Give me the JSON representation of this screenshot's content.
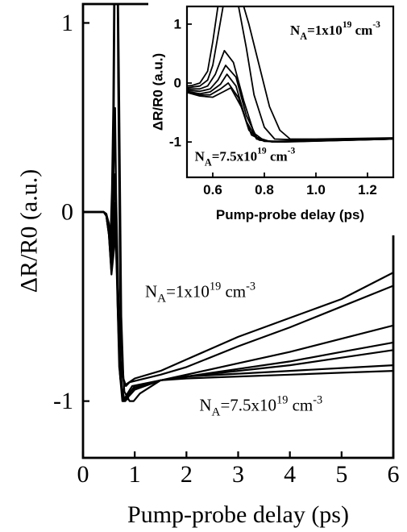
{
  "chart_data": [
    {
      "id": "main",
      "type": "line",
      "xlabel": "Pump-probe delay (ps)",
      "ylabel": "ΔR/R0 (a.u.)",
      "xlim": [
        0,
        6
      ],
      "ylim": [
        -1.3,
        1.1
      ],
      "xticks": [
        0,
        1,
        2,
        3,
        4,
        5,
        6
      ],
      "xtick_labels": [
        "0",
        "1",
        "2",
        "3",
        "4",
        "5",
        "6"
      ],
      "yticks": [
        -1,
        0,
        1
      ],
      "ytick_labels": [
        "-1",
        "0",
        "1"
      ],
      "grid": false,
      "annotations": [
        {
          "N": "N",
          "sub": "A",
          "eq": "=1x10",
          "sup": "19",
          "unit": " cm",
          "unit_sup": "-3",
          "x": 1.2,
          "y": -0.45
        },
        {
          "N": "N",
          "sub": "A",
          "eq": "=7.5x10",
          "sup": "19",
          "unit": " cm",
          "unit_sup": "-3",
          "x": 2.25,
          "y": -1.05
        }
      ],
      "series": [
        {
          "values": [
            [
              0,
              0
            ],
            [
              0.4,
              0
            ],
            [
              0.45,
              -0.01
            ],
            [
              0.5,
              -0.06
            ],
            [
              0.53,
              -0.15
            ],
            [
              0.56,
              0.12
            ],
            [
              0.585,
              0.55
            ],
            [
              0.6,
              1.1
            ],
            [
              0.67,
              1.1
            ],
            [
              0.68,
              0.7
            ],
            [
              0.72,
              -0.45
            ],
            [
              0.76,
              -0.85
            ],
            [
              0.8,
              -0.92
            ],
            [
              0.84,
              -0.91
            ],
            [
              1.0,
              -0.88
            ],
            [
              1.5,
              -0.84
            ],
            [
              2,
              -0.78
            ],
            [
              3,
              -0.66
            ],
            [
              4,
              -0.56
            ],
            [
              5,
              -0.46
            ],
            [
              6,
              -0.32
            ]
          ]
        },
        {
          "values": [
            [
              0,
              0
            ],
            [
              0.4,
              0
            ],
            [
              0.45,
              -0.01
            ],
            [
              0.5,
              -0.07
            ],
            [
              0.54,
              -0.2
            ],
            [
              0.57,
              0.05
            ],
            [
              0.595,
              0.5
            ],
            [
              0.61,
              1.1
            ],
            [
              0.68,
              1.1
            ],
            [
              0.7,
              0.6
            ],
            [
              0.74,
              -0.55
            ],
            [
              0.78,
              -0.88
            ],
            [
              0.83,
              -0.92
            ],
            [
              0.9,
              -0.9
            ],
            [
              1.5,
              -0.86
            ],
            [
              2,
              -0.82
            ],
            [
              3,
              -0.71
            ],
            [
              4,
              -0.61
            ],
            [
              5,
              -0.5
            ],
            [
              6,
              -0.39
            ]
          ]
        },
        {
          "values": [
            [
              0,
              0
            ],
            [
              0.4,
              0
            ],
            [
              0.45,
              -0.01
            ],
            [
              0.5,
              -0.08
            ],
            [
              0.55,
              -0.25
            ],
            [
              0.58,
              -0.02
            ],
            [
              0.6,
              0.3
            ],
            [
              0.62,
              0.55
            ],
            [
              0.64,
              0.1
            ],
            [
              0.68,
              -0.4
            ],
            [
              0.72,
              -0.78
            ],
            [
              0.76,
              -0.97
            ],
            [
              0.8,
              -0.99
            ],
            [
              0.86,
              -0.96
            ],
            [
              0.95,
              -0.92
            ],
            [
              1.5,
              -0.89
            ],
            [
              2,
              -0.86
            ],
            [
              3,
              -0.8
            ],
            [
              4,
              -0.74
            ],
            [
              5,
              -0.67
            ],
            [
              6,
              -0.6
            ]
          ]
        },
        {
          "values": [
            [
              0,
              0
            ],
            [
              0.4,
              0
            ],
            [
              0.45,
              -0.02
            ],
            [
              0.5,
              -0.1
            ],
            [
              0.55,
              -0.28
            ],
            [
              0.58,
              -0.05
            ],
            [
              0.61,
              0.2
            ],
            [
              0.63,
              0.05
            ],
            [
              0.67,
              -0.5
            ],
            [
              0.71,
              -0.85
            ],
            [
              0.76,
              -1.0
            ],
            [
              0.82,
              -1.0
            ],
            [
              0.88,
              -0.96
            ],
            [
              1.0,
              -0.93
            ],
            [
              1.5,
              -0.89
            ],
            [
              2,
              -0.87
            ],
            [
              3,
              -0.83
            ],
            [
              4,
              -0.79
            ],
            [
              5,
              -0.74
            ],
            [
              6,
              -0.69
            ]
          ]
        },
        {
          "values": [
            [
              0,
              0
            ],
            [
              0.4,
              0
            ],
            [
              0.45,
              -0.02
            ],
            [
              0.5,
              -0.11
            ],
            [
              0.55,
              -0.3
            ],
            [
              0.585,
              -0.1
            ],
            [
              0.615,
              0.05
            ],
            [
              0.65,
              -0.3
            ],
            [
              0.7,
              -0.82
            ],
            [
              0.78,
              -1.0
            ],
            [
              0.86,
              -0.99
            ],
            [
              0.92,
              -0.95
            ],
            [
              1.0,
              -0.92
            ],
            [
              1.5,
              -0.89
            ],
            [
              2,
              -0.87
            ],
            [
              3,
              -0.84
            ],
            [
              4,
              -0.81
            ],
            [
              5,
              -0.77
            ],
            [
              6,
              -0.73
            ]
          ]
        },
        {
          "values": [
            [
              0,
              0
            ],
            [
              0.4,
              0
            ],
            [
              0.45,
              -0.02
            ],
            [
              0.5,
              -0.12
            ],
            [
              0.55,
              -0.32
            ],
            [
              0.59,
              -0.15
            ],
            [
              0.62,
              -0.05
            ],
            [
              0.66,
              -0.35
            ],
            [
              0.72,
              -0.88
            ],
            [
              0.8,
              -0.99
            ],
            [
              0.9,
              -0.97
            ],
            [
              1.0,
              -0.94
            ],
            [
              1.5,
              -0.89
            ],
            [
              2,
              -0.87
            ],
            [
              3,
              -0.855
            ],
            [
              4,
              -0.84
            ],
            [
              5,
              -0.825
            ],
            [
              6,
              -0.81
            ]
          ]
        },
        {
          "values": [
            [
              0,
              0
            ],
            [
              0.4,
              0
            ],
            [
              0.45,
              -0.02
            ],
            [
              0.5,
              -0.12
            ],
            [
              0.55,
              -0.33
            ],
            [
              0.6,
              -0.2
            ],
            [
              0.63,
              -0.12
            ],
            [
              0.7,
              -0.55
            ],
            [
              0.8,
              -0.95
            ],
            [
              0.9,
              -1.0
            ],
            [
              0.98,
              -1.0
            ],
            [
              1.1,
              -0.96
            ],
            [
              1.5,
              -0.89
            ],
            [
              2,
              -0.88
            ],
            [
              3,
              -0.87
            ],
            [
              4,
              -0.86
            ],
            [
              5,
              -0.85
            ],
            [
              6,
              -0.84
            ]
          ]
        }
      ]
    },
    {
      "id": "inset",
      "type": "line",
      "xlabel": "Pump-probe delay (ps)",
      "ylabel": "ΔR/R0 (a.u.)",
      "xlim": [
        0.5,
        1.3
      ],
      "ylim": [
        -1.6,
        1.3
      ],
      "xticks": [
        0.6,
        0.8,
        1.0,
        1.2
      ],
      "xtick_labels": [
        "0.6",
        "0.8",
        "1.0",
        "1.2"
      ],
      "yticks": [
        -1,
        0,
        1
      ],
      "ytick_labels": [
        "-1",
        "0",
        "1"
      ],
      "grid": false,
      "annotations": [
        {
          "N": "N",
          "sub": "A",
          "eq": "=1x10",
          "sup": "19",
          "unit": " cm",
          "unit_sup": "-3",
          "x": 0.9,
          "y": 0.82
        },
        {
          "N": "N",
          "sub": "A",
          "eq": "=7.5x10",
          "sup": "19",
          "unit": " cm",
          "unit_sup": "-3",
          "x": 0.53,
          "y": -1.32
        }
      ],
      "series": [
        {
          "values": [
            [
              0.5,
              -0.05
            ],
            [
              0.52,
              -0.04
            ],
            [
              0.55,
              0.0
            ],
            [
              0.58,
              0.2
            ],
            [
              0.6,
              0.7
            ],
            [
              0.62,
              1.3
            ],
            [
              0.72,
              1.3
            ],
            [
              0.74,
              1.0
            ],
            [
              0.78,
              0.3
            ],
            [
              0.82,
              -0.4
            ],
            [
              0.86,
              -0.8
            ],
            [
              0.9,
              -0.95
            ],
            [
              1.0,
              -0.95
            ],
            [
              1.3,
              -0.93
            ]
          ]
        },
        {
          "values": [
            [
              0.5,
              -0.08
            ],
            [
              0.55,
              -0.05
            ],
            [
              0.58,
              0.05
            ],
            [
              0.6,
              0.3
            ],
            [
              0.62,
              0.8
            ],
            [
              0.64,
              1.3
            ],
            [
              0.7,
              1.3
            ],
            [
              0.73,
              0.6
            ],
            [
              0.76,
              -0.2
            ],
            [
              0.8,
              -0.75
            ],
            [
              0.84,
              -0.95
            ],
            [
              0.9,
              -0.96
            ],
            [
              1.3,
              -0.94
            ]
          ]
        },
        {
          "values": [
            [
              0.5,
              -0.1
            ],
            [
              0.55,
              -0.1
            ],
            [
              0.58,
              -0.05
            ],
            [
              0.61,
              0.15
            ],
            [
              0.645,
              0.55
            ],
            [
              0.68,
              0.35
            ],
            [
              0.72,
              -0.3
            ],
            [
              0.76,
              -0.85
            ],
            [
              0.8,
              -0.98
            ],
            [
              0.85,
              -0.99
            ],
            [
              1.3,
              -0.95
            ]
          ]
        },
        {
          "values": [
            [
              0.5,
              -0.12
            ],
            [
              0.55,
              -0.14
            ],
            [
              0.59,
              -0.1
            ],
            [
              0.62,
              0.05
            ],
            [
              0.65,
              0.3
            ],
            [
              0.69,
              0.1
            ],
            [
              0.73,
              -0.55
            ],
            [
              0.77,
              -0.92
            ],
            [
              0.82,
              -0.99
            ],
            [
              1.3,
              -0.95
            ]
          ]
        },
        {
          "values": [
            [
              0.5,
              -0.14
            ],
            [
              0.55,
              -0.18
            ],
            [
              0.59,
              -0.15
            ],
            [
              0.63,
              -0.02
            ],
            [
              0.655,
              0.15
            ],
            [
              0.69,
              -0.05
            ],
            [
              0.73,
              -0.65
            ],
            [
              0.77,
              -0.95
            ],
            [
              0.83,
              -1.0
            ],
            [
              1.3,
              -0.95
            ]
          ]
        },
        {
          "values": [
            [
              0.5,
              -0.15
            ],
            [
              0.55,
              -0.2
            ],
            [
              0.59,
              -0.2
            ],
            [
              0.63,
              -0.1
            ],
            [
              0.66,
              0.0
            ],
            [
              0.7,
              -0.25
            ],
            [
              0.74,
              -0.8
            ],
            [
              0.78,
              -0.97
            ],
            [
              0.85,
              -1.0
            ],
            [
              1.3,
              -0.95
            ]
          ]
        },
        {
          "values": [
            [
              0.5,
              -0.16
            ],
            [
              0.55,
              -0.22
            ],
            [
              0.6,
              -0.24
            ],
            [
              0.64,
              -0.15
            ],
            [
              0.67,
              -0.08
            ],
            [
              0.71,
              -0.4
            ],
            [
              0.75,
              -0.88
            ],
            [
              0.8,
              -0.99
            ],
            [
              0.88,
              -1.0
            ],
            [
              1.3,
              -0.95
            ]
          ]
        }
      ]
    }
  ]
}
